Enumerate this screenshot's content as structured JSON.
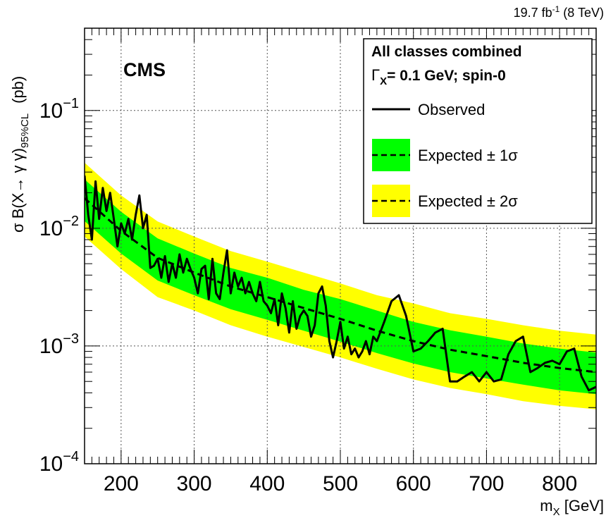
{
  "chart_data": {
    "type": "line",
    "experiment_label": "CMS",
    "lumi_value": "19.7 fb",
    "lumi_exp": "-1",
    "lumi_energy": " (8 TeV)",
    "xlabel_main": "m",
    "xlabel_sub": "X",
    "xlabel_unit": " [GeV]",
    "ylabel_main": "σ B(X→ γ γ)",
    "ylabel_sub": "95%CL",
    "ylabel_unit": "(pb)",
    "xlim": [
      150,
      850
    ],
    "ylim": [
      0.0001,
      0.5
    ],
    "y_scale": "log",
    "grid": true,
    "legend_placement": "top-right",
    "legend": {
      "header_line1": "All classes combined",
      "header_line2_gamma": "Γ",
      "header_line2_sub": "X",
      "header_line2_rest": "= 0.1 GeV; spin-0",
      "observed": "Observed",
      "expected_1sigma": "Expected ± 1σ",
      "expected_2sigma": "Expected ± 2σ"
    },
    "x_ticks": [
      200,
      300,
      400,
      500,
      600,
      700,
      800
    ],
    "x_tick_labels": [
      "200",
      "300",
      "400",
      "500",
      "600",
      "700",
      "800"
    ],
    "y_ticks": [
      {
        "value": 0.1,
        "mantissa": "10",
        "exponent": "−1"
      },
      {
        "value": 0.01,
        "mantissa": "10",
        "exponent": "−2"
      },
      {
        "value": 0.001,
        "mantissa": "10",
        "exponent": "−3"
      },
      {
        "value": 0.0001,
        "mantissa": "10",
        "exponent": "−4"
      }
    ],
    "colors": {
      "band_1sigma": "#00ff00",
      "band_2sigma": "#ffff00",
      "observed": "#000000",
      "expected": "#000000"
    },
    "expected": {
      "x": [
        150,
        200,
        250,
        300,
        350,
        400,
        450,
        500,
        550,
        600,
        650,
        700,
        750,
        800,
        850
      ],
      "median": [
        0.018,
        0.0095,
        0.0056,
        0.0042,
        0.0032,
        0.0026,
        0.0021,
        0.0017,
        0.00135,
        0.0011,
        0.00093,
        0.00082,
        0.00072,
        0.00065,
        0.0006
      ],
      "minus1": [
        0.0115,
        0.0061,
        0.0036,
        0.0027,
        0.00205,
        0.00167,
        0.00135,
        0.00109,
        0.00087,
        0.00071,
        0.0006,
        0.00053,
        0.00047,
        0.00042,
        0.00039
      ],
      "plus1": [
        0.026,
        0.0138,
        0.0082,
        0.0061,
        0.0046,
        0.0038,
        0.003,
        0.0025,
        0.002,
        0.0016,
        0.00136,
        0.0012,
        0.00105,
        0.00095,
        0.00088
      ],
      "minus2": [
        0.0085,
        0.0045,
        0.0026,
        0.002,
        0.0015,
        0.0012,
        0.00098,
        0.0008,
        0.00064,
        0.00052,
        0.00044,
        0.00039,
        0.00034,
        0.00031,
        0.00029
      ],
      "plus2": [
        0.036,
        0.019,
        0.0114,
        0.0085,
        0.0064,
        0.0052,
        0.0042,
        0.0034,
        0.0027,
        0.0023,
        0.0019,
        0.0017,
        0.0015,
        0.00135,
        0.00125
      ]
    },
    "observed": {
      "x": [
        150,
        155,
        160,
        165,
        170,
        175,
        180,
        185,
        190,
        195,
        200,
        205,
        210,
        215,
        220,
        225,
        230,
        235,
        240,
        245,
        250,
        255,
        260,
        265,
        270,
        275,
        280,
        285,
        290,
        295,
        300,
        305,
        310,
        315,
        320,
        325,
        330,
        335,
        340,
        345,
        350,
        355,
        360,
        365,
        370,
        375,
        380,
        385,
        390,
        395,
        400,
        405,
        410,
        415,
        420,
        425,
        430,
        435,
        440,
        445,
        450,
        455,
        460,
        465,
        470,
        475,
        480,
        485,
        490,
        495,
        500,
        505,
        510,
        515,
        520,
        525,
        530,
        535,
        540,
        545,
        550,
        560,
        570,
        580,
        590,
        600,
        610,
        620,
        630,
        640,
        650,
        660,
        670,
        680,
        690,
        700,
        710,
        720,
        730,
        740,
        750,
        760,
        770,
        780,
        790,
        800,
        810,
        820,
        830,
        840,
        850
      ],
      "y": [
        0.028,
        0.013,
        0.008,
        0.025,
        0.012,
        0.022,
        0.014,
        0.02,
        0.012,
        0.007,
        0.011,
        0.009,
        0.012,
        0.008,
        0.013,
        0.019,
        0.01,
        0.013,
        0.0046,
        0.0048,
        0.0055,
        0.0038,
        0.0058,
        0.0035,
        0.005,
        0.0038,
        0.006,
        0.0042,
        0.0055,
        0.0045,
        0.0038,
        0.0028,
        0.0045,
        0.0048,
        0.0025,
        0.0055,
        0.0028,
        0.0025,
        0.0042,
        0.0065,
        0.0028,
        0.0042,
        0.0032,
        0.0038,
        0.0028,
        0.0035,
        0.0028,
        0.0024,
        0.0035,
        0.0024,
        0.0022,
        0.0019,
        0.0025,
        0.0015,
        0.0028,
        0.0021,
        0.0013,
        0.0024,
        0.0014,
        0.0018,
        0.002,
        0.0018,
        0.0012,
        0.0015,
        0.0028,
        0.0032,
        0.0022,
        0.0011,
        0.0008,
        0.0011,
        0.0016,
        0.00095,
        0.0012,
        0.00085,
        0.00095,
        0.0008,
        0.0009,
        0.0011,
        0.00085,
        0.0012,
        0.0011,
        0.0016,
        0.0024,
        0.0027,
        0.0018,
        0.0009,
        0.00095,
        0.0011,
        0.0013,
        0.0014,
        0.0005,
        0.0005,
        0.00055,
        0.0006,
        0.0005,
        0.0006,
        0.0005,
        0.00052,
        0.00085,
        0.0011,
        0.0012,
        0.0006,
        0.00065,
        0.00072,
        0.00075,
        0.0007,
        0.0009,
        0.00095,
        0.00055,
        0.00042,
        0.00045
      ]
    }
  }
}
